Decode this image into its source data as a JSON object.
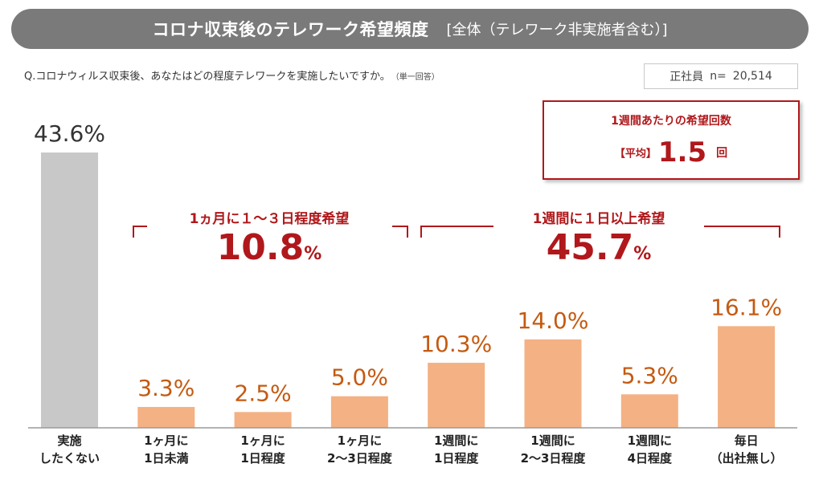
{
  "header": {
    "title": "コロナ収束後のテレワーク希望頻度",
    "subtitle": "[全体（テレワーク非実施者含む）]"
  },
  "question": {
    "text": "Q.コロナウィルス収束後、あなたはどの程度テレワークを実施したいですか。",
    "note": "（単一回答）"
  },
  "sample": {
    "group": "正社員",
    "n_label": "n=",
    "n_value": "20,514"
  },
  "average_box": {
    "title": "1週間あたりの希望回数",
    "label": "【平均】",
    "value": "1.5",
    "unit": "回"
  },
  "groups": [
    {
      "title": "1ヵ月に１～３日程度希望",
      "value": "10.8",
      "unit": "%"
    },
    {
      "title": "1週間に１日以上希望",
      "value": "45.7",
      "unit": "%"
    }
  ],
  "colors": {
    "title_bar": "#7a7a7a",
    "accent": "#b0181b",
    "bar_gray": "#c8c8c8",
    "bar_orange": "#f4b183",
    "label_orange": "#c55a11"
  },
  "chart_data": {
    "type": "bar",
    "categories": [
      [
        "実施",
        "したくない"
      ],
      [
        "1ヶ月に",
        "1日未満"
      ],
      [
        "1ヶ月に",
        "1日程度"
      ],
      [
        "1ヶ月に",
        "2～3日程度"
      ],
      [
        "1週間に",
        "1日程度"
      ],
      [
        "1週間に",
        "2～3日程度"
      ],
      [
        "1週間に",
        "4日程度"
      ],
      [
        "毎日",
        "（出社無し）"
      ]
    ],
    "values": [
      43.6,
      3.3,
      2.5,
      5.0,
      10.3,
      14.0,
      5.3,
      16.1
    ],
    "value_labels": [
      "43.6%",
      "3.3%",
      "2.5%",
      "5.0%",
      "10.3%",
      "14.0%",
      "5.3%",
      "16.1%"
    ],
    "ylim": [
      0,
      45
    ],
    "xlabel": "",
    "ylabel": "",
    "grid": false
  }
}
